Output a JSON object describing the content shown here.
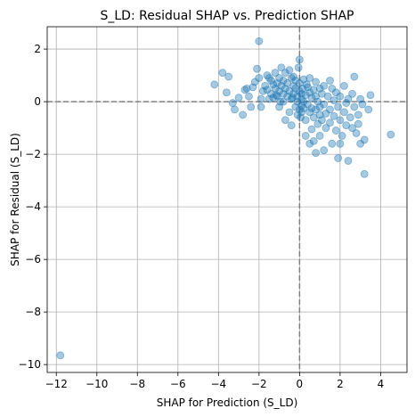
{
  "chart_data": {
    "type": "scatter",
    "title": "S_LD: Residual SHAP vs. Prediction SHAP",
    "xlabel": "SHAP for Prediction (S_LD)",
    "ylabel": "SHAP for Residual (S_LD)",
    "xlim": [
      -12.45,
      5.3
    ],
    "ylim": [
      -10.3,
      2.85
    ],
    "xticks": [
      -12,
      -10,
      -8,
      -6,
      -4,
      -2,
      0,
      2,
      4
    ],
    "yticks": [
      -10,
      -8,
      -6,
      -4,
      -2,
      0,
      2
    ],
    "xtick_labels": [
      "−12",
      "−10",
      "−8",
      "−6",
      "−4",
      "−2",
      "0",
      "2",
      "4"
    ],
    "ytick_labels": [
      "−10",
      "−8",
      "−6",
      "−4",
      "−2",
      "0",
      "2"
    ],
    "grid": true,
    "reference_lines": {
      "x": 0,
      "y": 0
    },
    "colors": {
      "points": "#1f77b4",
      "reference": "#808080",
      "grid": "#b0b0b0"
    },
    "point_alpha": 0.4,
    "points": [
      [
        -11.8,
        -9.65
      ],
      [
        -4.2,
        0.65
      ],
      [
        -3.8,
        1.1
      ],
      [
        -3.5,
        0.95
      ],
      [
        -3.6,
        0.35
      ],
      [
        -3.3,
        -0.05
      ],
      [
        -3.2,
        -0.3
      ],
      [
        -3.0,
        0.15
      ],
      [
        -2.8,
        -0.5
      ],
      [
        -2.6,
        0.5
      ],
      [
        -2.5,
        0.2
      ],
      [
        -2.4,
        -0.2
      ],
      [
        -2.3,
        0.55
      ],
      [
        -2.2,
        0.75
      ],
      [
        -2.1,
        1.25
      ],
      [
        -2.0,
        0.9
      ],
      [
        -2.0,
        2.3
      ],
      [
        -1.9,
        0.1
      ],
      [
        -1.9,
        -0.2
      ],
      [
        -1.8,
        0.4
      ],
      [
        -1.7,
        0.6
      ],
      [
        -1.6,
        0.45
      ],
      [
        -1.5,
        0.9
      ],
      [
        -1.5,
        0.1
      ],
      [
        -1.4,
        0.8
      ],
      [
        -1.4,
        0.3
      ],
      [
        -1.3,
        0.65
      ],
      [
        -1.3,
        0.15
      ],
      [
        -1.2,
        0.5
      ],
      [
        -1.2,
        1.1
      ],
      [
        -1.1,
        0.7
      ],
      [
        -1.1,
        0.2
      ],
      [
        -1.0,
        0.9
      ],
      [
        -1.0,
        0.4
      ],
      [
        -1.0,
        -0.2
      ],
      [
        -0.9,
        1.3
      ],
      [
        -0.9,
        0.6
      ],
      [
        -0.8,
        0.3
      ],
      [
        -0.8,
        0.8
      ],
      [
        -0.8,
        0.0
      ],
      [
        -0.7,
        1.1
      ],
      [
        -0.7,
        0.5
      ],
      [
        -0.7,
        -0.7
      ],
      [
        -0.6,
        0.2
      ],
      [
        -0.6,
        0.7
      ],
      [
        -0.5,
        1.2
      ],
      [
        -0.5,
        0.4
      ],
      [
        -0.5,
        -0.4
      ],
      [
        -0.4,
        0.9
      ],
      [
        -0.4,
        0.1
      ],
      [
        -0.4,
        -0.9
      ],
      [
        -0.3,
        0.6
      ],
      [
        -0.3,
        0.3
      ],
      [
        -0.3,
        0.95
      ],
      [
        -0.2,
        -0.2
      ],
      [
        -0.2,
        0.5
      ],
      [
        -0.2,
        0.8
      ],
      [
        -0.1,
        0.2
      ],
      [
        -0.1,
        -0.5
      ],
      [
        -0.1,
        0.0
      ],
      [
        0.0,
        0.7
      ],
      [
        0.0,
        -0.3
      ],
      [
        0.0,
        0.4
      ],
      [
        0.0,
        1.6
      ],
      [
        0.05,
        -0.6
      ],
      [
        0.1,
        0.1
      ],
      [
        0.1,
        0.3
      ],
      [
        0.1,
        -0.15
      ],
      [
        0.1,
        -0.4
      ],
      [
        0.15,
        0.5
      ],
      [
        0.2,
        0.85
      ],
      [
        0.2,
        0.0
      ],
      [
        0.2,
        -0.25
      ],
      [
        0.3,
        -0.7
      ],
      [
        0.3,
        0.25
      ],
      [
        0.4,
        0.55
      ],
      [
        0.4,
        -0.1
      ],
      [
        0.5,
        0.35
      ],
      [
        0.5,
        -0.4
      ],
      [
        0.5,
        0.9
      ],
      [
        0.6,
        -1.05
      ],
      [
        0.6,
        0.15
      ],
      [
        0.6,
        -0.25
      ],
      [
        0.7,
        -0.6
      ],
      [
        0.7,
        0.45
      ],
      [
        0.7,
        -1.5
      ],
      [
        0.8,
        0.2
      ],
      [
        0.8,
        -0.3
      ],
      [
        0.8,
        0.75
      ],
      [
        0.9,
        -0.85
      ],
      [
        0.9,
        0.0
      ],
      [
        1.0,
        0.5
      ],
      [
        1.0,
        -0.2
      ],
      [
        1.0,
        -1.3
      ],
      [
        1.0,
        -0.5
      ],
      [
        1.1,
        0.3
      ],
      [
        1.1,
        -0.7
      ],
      [
        1.2,
        0.6
      ],
      [
        1.2,
        -0.1
      ],
      [
        1.3,
        -0.45
      ],
      [
        1.3,
        -1.0
      ],
      [
        1.4,
        0.2
      ],
      [
        1.5,
        -0.3
      ],
      [
        1.5,
        -0.8
      ],
      [
        1.6,
        0.5
      ],
      [
        1.6,
        -1.6
      ],
      [
        1.7,
        0.05
      ],
      [
        1.7,
        -0.55
      ],
      [
        1.8,
        -1.1
      ],
      [
        1.8,
        0.35
      ],
      [
        1.9,
        -0.2
      ],
      [
        1.9,
        -2.15
      ],
      [
        2.0,
        -0.7
      ],
      [
        2.0,
        0.2
      ],
      [
        2.1,
        -1.3
      ],
      [
        2.2,
        -0.4
      ],
      [
        2.2,
        0.6
      ],
      [
        2.3,
        -0.05
      ],
      [
        2.3,
        -0.9
      ],
      [
        2.4,
        -2.25
      ],
      [
        2.4,
        0.1
      ],
      [
        2.5,
        -0.6
      ],
      [
        2.6,
        0.3
      ],
      [
        2.6,
        -1.0
      ],
      [
        2.7,
        0.95
      ],
      [
        2.7,
        -0.2
      ],
      [
        2.8,
        -1.2
      ],
      [
        2.9,
        -0.5
      ],
      [
        3.0,
        0.1
      ],
      [
        3.0,
        -1.6
      ],
      [
        3.1,
        -0.1
      ],
      [
        3.2,
        -1.45
      ],
      [
        3.2,
        -2.75
      ],
      [
        3.4,
        -0.3
      ],
      [
        3.5,
        0.25
      ],
      [
        0.8,
        -1.95
      ],
      [
        0.5,
        -1.6
      ],
      [
        0.3,
        -1.3
      ],
      [
        4.5,
        -1.25
      ],
      [
        -2.7,
        0.45
      ],
      [
        -1.6,
        1.0
      ],
      [
        -0.95,
        0.0
      ],
      [
        -0.05,
        1.3
      ],
      [
        1.5,
        0.8
      ],
      [
        2.0,
        -1.6
      ],
      [
        2.9,
        -0.85
      ],
      [
        1.2,
        -1.85
      ],
      [
        -1.15,
        0.25
      ],
      [
        -0.35,
        0.15
      ],
      [
        0.35,
        0.65
      ]
    ]
  }
}
